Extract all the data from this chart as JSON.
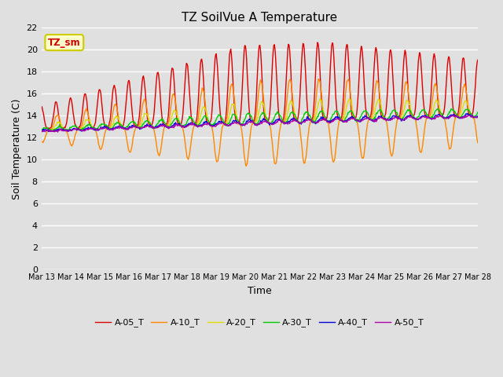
{
  "title": "TZ SoilVue A Temperature",
  "xlabel": "Time",
  "ylabel": "Soil Temperature (C)",
  "annotation_text": "TZ_sm",
  "annotation_color": "#cc0000",
  "annotation_bg": "#ffffcc",
  "annotation_border": "#cccc00",
  "ylim": [
    0,
    22
  ],
  "yticks": [
    0,
    2,
    4,
    6,
    8,
    10,
    12,
    14,
    16,
    18,
    20,
    22
  ],
  "series_colors": {
    "A-05_T": "#dd0000",
    "A-10_T": "#ff8800",
    "A-20_T": "#dddd00",
    "A-30_T": "#00cc00",
    "A-40_T": "#0000dd",
    "A-50_T": "#aa00aa"
  },
  "bg_color": "#e0e0e0",
  "grid_color": "#ffffff",
  "tick_dates": [
    "Mar 13",
    "Mar 14",
    "Mar 15",
    "Mar 16",
    "Mar 17",
    "Mar 18",
    "Mar 19",
    "Mar 20",
    "Mar 21",
    "Mar 22",
    "Mar 23",
    "Mar 24",
    "Mar 25",
    "Mar 26",
    "Mar 27",
    "Mar 28"
  ]
}
